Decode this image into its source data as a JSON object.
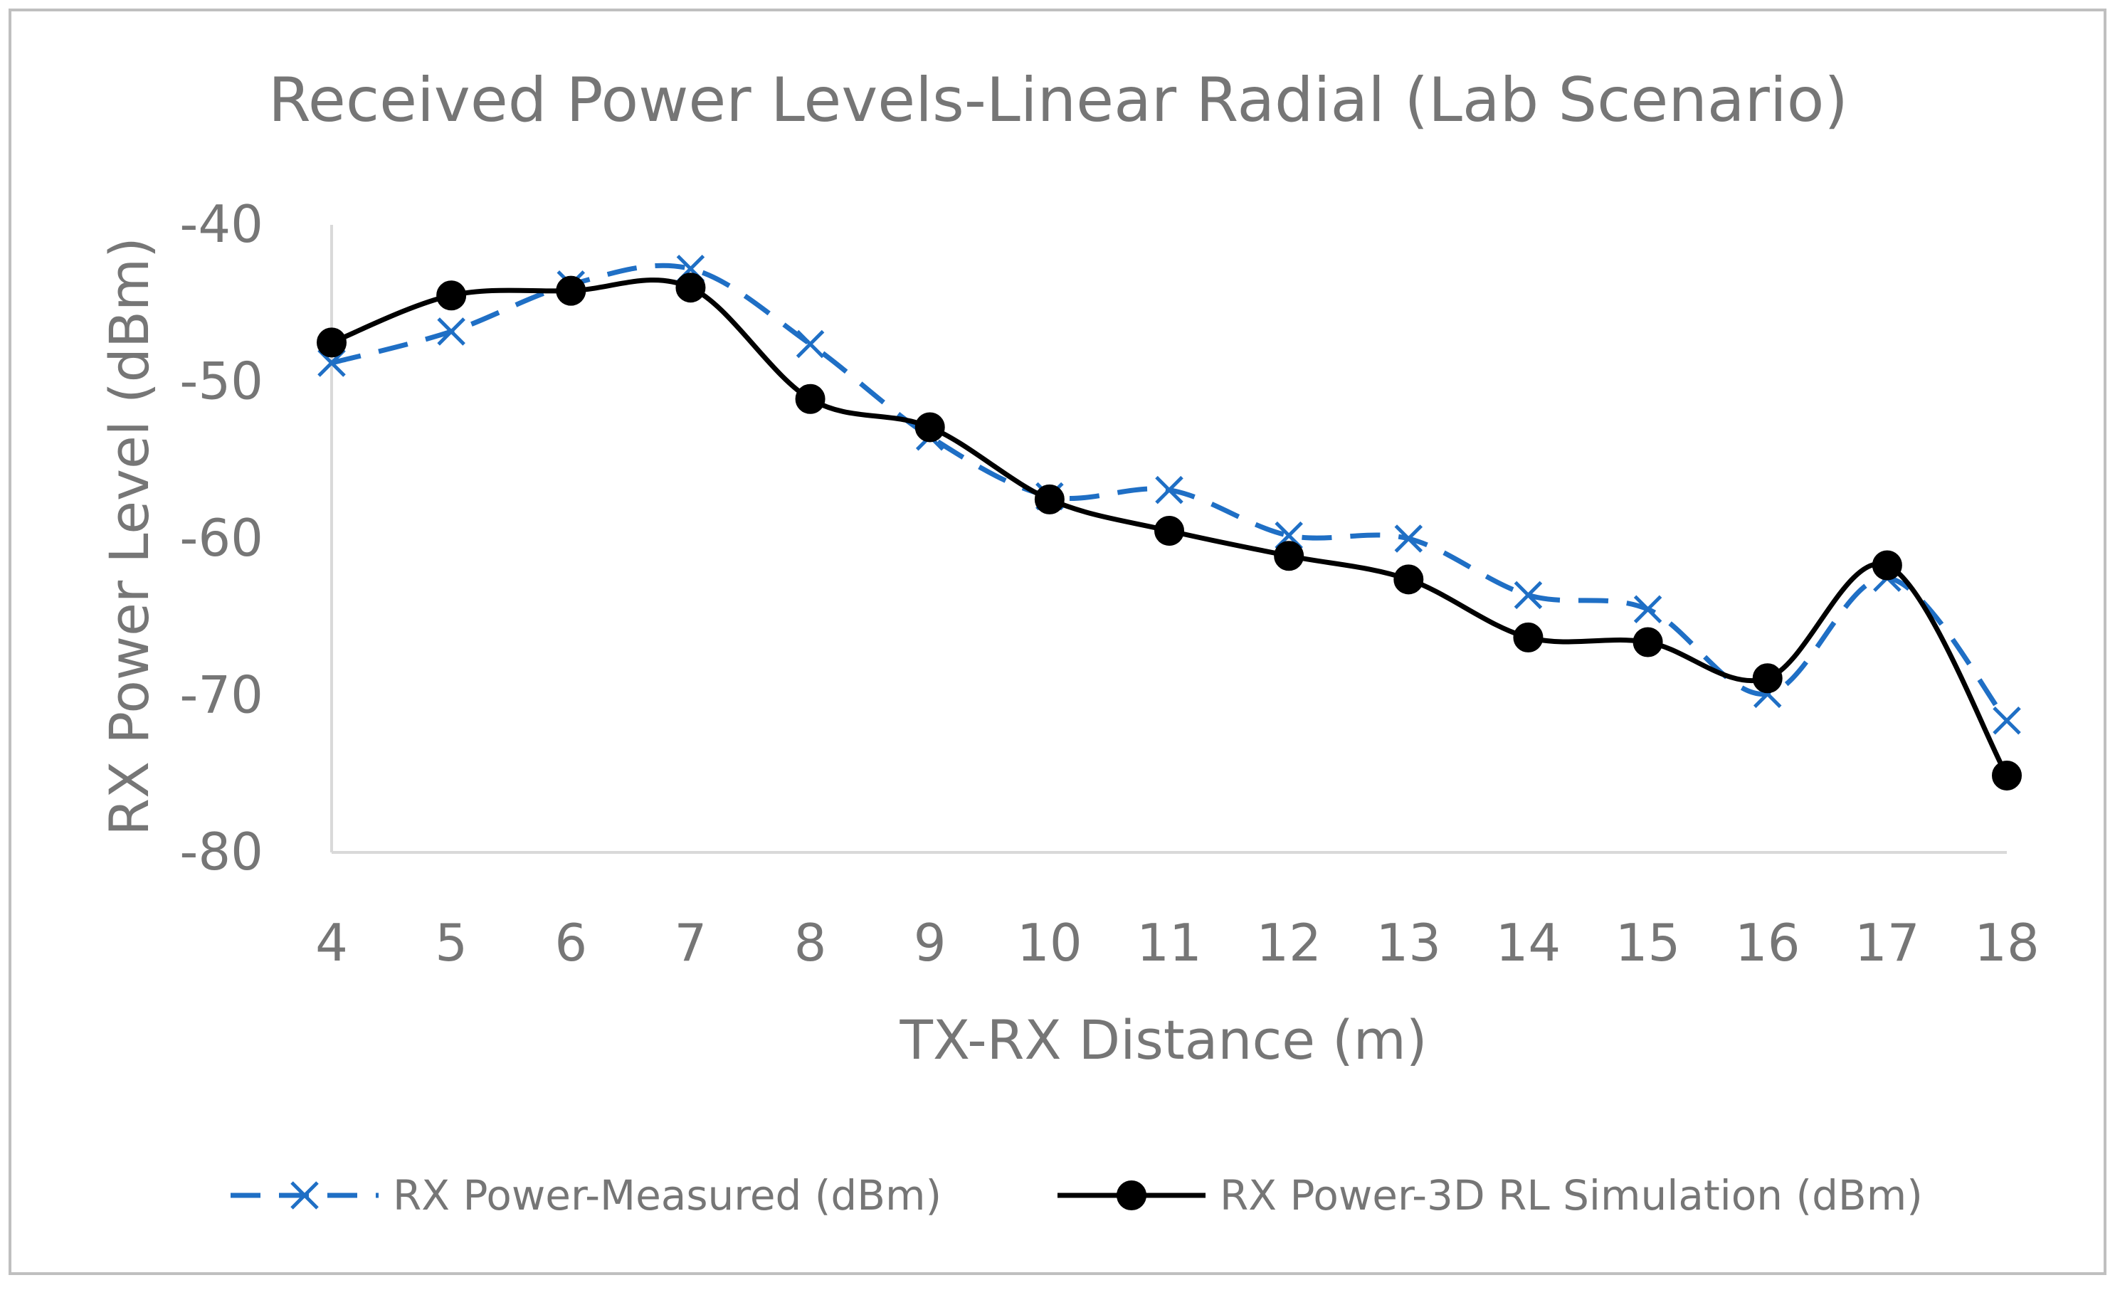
{
  "chart_data": {
    "type": "line",
    "title": "Received Power Levels-Linear Radial (Lab Scenario)",
    "xlabel": "TX-RX Distance (m)",
    "ylabel": "RX Power Level (dBm)",
    "x": [
      4,
      5,
      6,
      7,
      8,
      9,
      10,
      11,
      12,
      13,
      14,
      15,
      16,
      17,
      18
    ],
    "x_tick_labels": [
      "4",
      "5",
      "6",
      "7",
      "8",
      "9",
      "10",
      "11",
      "12",
      "13",
      "14",
      "15",
      "16",
      "17",
      "18"
    ],
    "ylim": [
      -80,
      -40
    ],
    "y_ticks": [
      -80,
      -70,
      -60,
      -50,
      -40
    ],
    "y_tick_labels": [
      "-80",
      "-70",
      "-60",
      "-50",
      "-40"
    ],
    "grid": false,
    "legend_position": "bottom",
    "series": [
      {
        "name": "RX Power-Measured (dBm)",
        "color": "#1f6fc5",
        "line_style": "dashed",
        "marker": "x",
        "smooth": true,
        "values": [
          -48.8,
          -46.8,
          -43.8,
          -42.8,
          -47.6,
          -53.5,
          -57.3,
          -56.9,
          -59.8,
          -60.0,
          -63.6,
          -64.5,
          -69.9,
          -62.5,
          -71.6
        ]
      },
      {
        "name": "RX Power-3D RL Simulation (dBm)",
        "color": "#000000",
        "line_style": "solid",
        "marker": "circle",
        "smooth": true,
        "values": [
          -47.5,
          -44.5,
          -44.2,
          -44.0,
          -51.1,
          -52.9,
          -57.5,
          -59.5,
          -61.1,
          -62.6,
          -66.3,
          -66.6,
          -68.9,
          -61.7,
          -75.1
        ]
      }
    ]
  }
}
